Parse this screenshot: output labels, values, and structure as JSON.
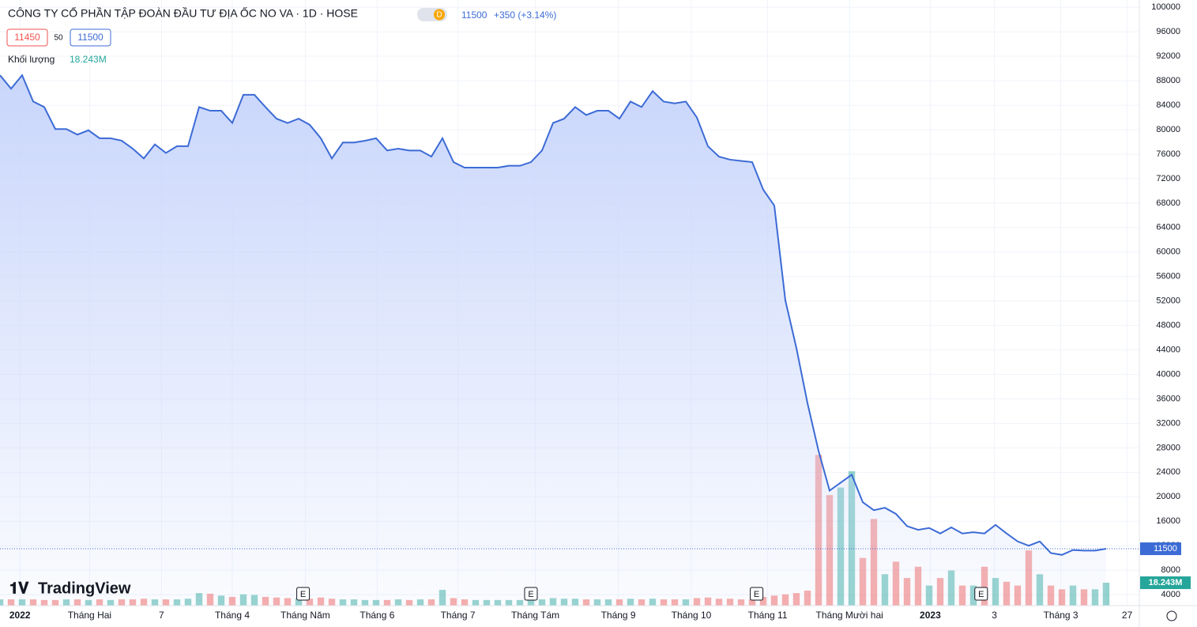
{
  "header": {
    "title": "CÔNG TY CỔ PHẦN TẬP ĐOÀN ĐẦU TƯ ĐỊA ỐC NO VA · 1D · HOSE",
    "badge": "D",
    "last": "11500",
    "change": "+350 (+3.14%)",
    "bid": "11450",
    "spread": "50",
    "ask": "11500",
    "volume_label": "Khối lượng",
    "logo": "TradingView"
  },
  "chart_data": {
    "type": "line",
    "x": [
      0,
      1,
      2,
      3,
      4,
      5,
      6,
      7,
      8,
      9,
      10,
      11,
      12,
      13,
      14,
      15,
      16,
      17,
      18,
      19,
      20,
      21,
      22,
      23,
      24,
      25,
      26,
      27,
      28,
      29,
      30,
      31,
      32,
      33,
      34,
      35,
      36,
      37,
      38,
      39,
      40,
      41,
      42,
      43,
      44,
      45,
      46,
      47,
      48,
      49,
      50,
      51,
      52,
      53,
      54,
      55,
      56,
      57,
      58,
      59,
      60,
      61,
      62,
      63,
      64,
      65,
      66,
      67,
      68,
      69,
      70,
      71,
      72,
      73,
      74,
      75,
      76,
      77,
      78,
      79,
      80,
      81,
      82,
      83,
      84,
      85,
      86,
      87,
      88,
      89,
      90,
      91,
      92,
      93,
      94,
      95,
      96,
      97,
      98,
      99,
      100
    ],
    "series": [
      {
        "name": "Giá",
        "color": "#3c6bd6",
        "values": [
          88900,
          86700,
          88900,
          84600,
          83700,
          80100,
          80100,
          79200,
          79900,
          78600,
          78600,
          78200,
          76900,
          75300,
          77600,
          76200,
          77300,
          77300,
          83700,
          83100,
          83100,
          81100,
          85700,
          85700,
          83700,
          81800,
          81100,
          81800,
          80800,
          78600,
          75300,
          77900,
          77900,
          78200,
          78600,
          76600,
          76900,
          76600,
          76600,
          75600,
          78600,
          74700,
          73800,
          73800,
          73800,
          73800,
          74100,
          74100,
          74700,
          76600,
          81100,
          81800,
          83700,
          82400,
          83100,
          83100,
          81800,
          84600,
          83700,
          86300,
          84600,
          84300,
          84600,
          82000,
          77300,
          75600,
          75100,
          74900,
          74700,
          70200,
          67600,
          52100,
          44300,
          35300,
          27500,
          21000,
          22300,
          23600,
          19100,
          17800,
          18200,
          17200,
          15200,
          14600,
          14900,
          14000,
          15000,
          14000,
          14200,
          14000,
          15400,
          14000,
          12700,
          12000,
          12700,
          10800,
          10500,
          11300,
          11200,
          11200,
          11500
        ],
        "value_labels": {
          "100": "11500"
        }
      },
      {
        "name": "Khối lượng",
        "axis": "y2",
        "up_color": "rgba(38,166,154,0.5)",
        "down_color": "rgba(239,83,80,0.5)",
        "values": [
          5000000,
          5000000,
          5000000,
          5000000,
          4500000,
          4500000,
          5000000,
          5000000,
          4500000,
          5000000,
          4500000,
          5000000,
          5000000,
          5500000,
          5000000,
          5000000,
          5000000,
          5500000,
          10000000,
          9500000,
          8000000,
          7000000,
          9000000,
          8500000,
          7000000,
          6500000,
          6000000,
          6000000,
          5500000,
          6500000,
          5500000,
          5000000,
          5000000,
          4500000,
          4500000,
          4500000,
          5000000,
          4500000,
          5000000,
          5000000,
          12600000,
          6000000,
          5000000,
          4500000,
          4500000,
          4500000,
          4500000,
          4500000,
          5000000,
          5000000,
          6000000,
          5500000,
          5500000,
          5000000,
          5000000,
          5000000,
          5000000,
          5500000,
          5000000,
          5500000,
          5000000,
          5000000,
          5000000,
          6000000,
          6500000,
          5500000,
          5500000,
          5000000,
          5000000,
          7000000,
          8000000,
          9000000,
          10000000,
          12000000,
          120000000,
          88000000,
          94000000,
          107000000,
          38000000,
          69000000,
          25000000,
          35000000,
          22000000,
          31000000,
          16000000,
          22000000,
          28000000,
          16000000,
          16000000,
          31000000,
          22000000,
          19000000,
          16000000,
          44000000,
          25000000,
          16000000,
          13000000,
          16000000,
          13000000,
          13000000,
          18243000
        ],
        "value_labels": {
          "100": "18.243M"
        }
      }
    ],
    "xlim": [
      0,
      103
    ],
    "xticks": [
      {
        "value": 1.8,
        "label": "2022"
      },
      {
        "value": 8.1,
        "label": "Tháng Hai"
      },
      {
        "value": 14.6,
        "label": "7"
      },
      {
        "value": 21,
        "label": "Tháng 4"
      },
      {
        "value": 27.6,
        "label": "Tháng Năm"
      },
      {
        "value": 34.1,
        "label": "Tháng 6"
      },
      {
        "value": 41.4,
        "label": "Tháng 7"
      },
      {
        "value": 48.4,
        "label": "Tháng Tám"
      },
      {
        "value": 55.9,
        "label": "Tháng 9"
      },
      {
        "value": 62.5,
        "label": "Tháng 10"
      },
      {
        "value": 69.4,
        "label": "Tháng 11"
      },
      {
        "value": 76.8,
        "label": "Tháng Mười hai"
      },
      {
        "value": 84.1,
        "label": "2023"
      },
      {
        "value": 89.9,
        "label": "3"
      },
      {
        "value": 95.9,
        "label": "Tháng 3"
      },
      {
        "value": 101.9,
        "label": "27"
      }
    ],
    "ylim": [
      2200,
      101200
    ],
    "yticks": [
      4000,
      8000,
      12000,
      16000,
      20000,
      24000,
      28000,
      32000,
      36000,
      40000,
      44000,
      48000,
      52000,
      56000,
      60000,
      64000,
      68000,
      72000,
      76000,
      80000,
      84000,
      88000,
      92000,
      96000,
      100000
    ],
    "y2lim": [
      0,
      482000000
    ],
    "events": [
      {
        "label": "E",
        "x": 27.4
      },
      {
        "label": "E",
        "x": 48
      },
      {
        "label": "E",
        "x": 68.4
      },
      {
        "label": "E",
        "x": 88.7
      }
    ],
    "grid": true
  }
}
